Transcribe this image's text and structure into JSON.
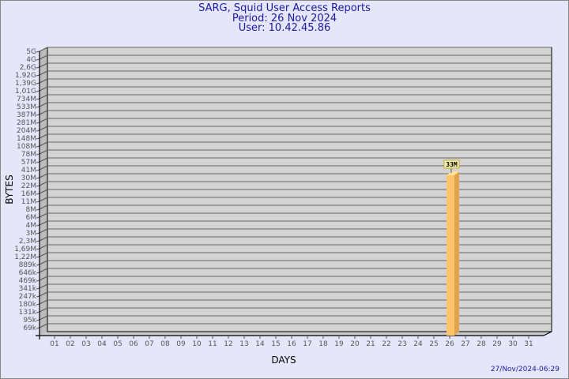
{
  "header": {
    "title": "SARG, Squid User Access Reports",
    "period": "Period: 26 Nov 2024",
    "user": "User: 10.42.45.86"
  },
  "footer": {
    "timestamp": "27/Nov/2024-06:29"
  },
  "chart_data": {
    "type": "bar",
    "xlabel": "DAYS",
    "ylabel": "BYTES",
    "y_scale": "log",
    "grid": true,
    "y_ticks": [
      "5G",
      "4G",
      "2,6G",
      "1,92G",
      "1,39G",
      "1,01G",
      "734M",
      "533M",
      "387M",
      "281M",
      "204M",
      "148M",
      "108M",
      "78M",
      "57M",
      "41M",
      "30M",
      "22M",
      "16M",
      "11M",
      "8M",
      "6M",
      "4M",
      "3M",
      "2,3M",
      "1,69M",
      "1,22M",
      "889k",
      "646k",
      "469k",
      "341k",
      "247k",
      "180k",
      "131k",
      "95k",
      "69k"
    ],
    "categories": [
      "01",
      "02",
      "03",
      "04",
      "05",
      "06",
      "07",
      "08",
      "09",
      "10",
      "11",
      "12",
      "13",
      "14",
      "15",
      "16",
      "17",
      "18",
      "19",
      "20",
      "21",
      "22",
      "23",
      "24",
      "25",
      "26",
      "27",
      "28",
      "29",
      "30",
      "31"
    ],
    "values": [
      null,
      null,
      null,
      null,
      null,
      null,
      null,
      null,
      null,
      null,
      null,
      null,
      null,
      null,
      null,
      null,
      null,
      null,
      null,
      null,
      null,
      null,
      null,
      null,
      null,
      "33M",
      null,
      null,
      null,
      null,
      null
    ],
    "bar_color": "#fdc66b",
    "plot_background": "#d3d3d3"
  }
}
